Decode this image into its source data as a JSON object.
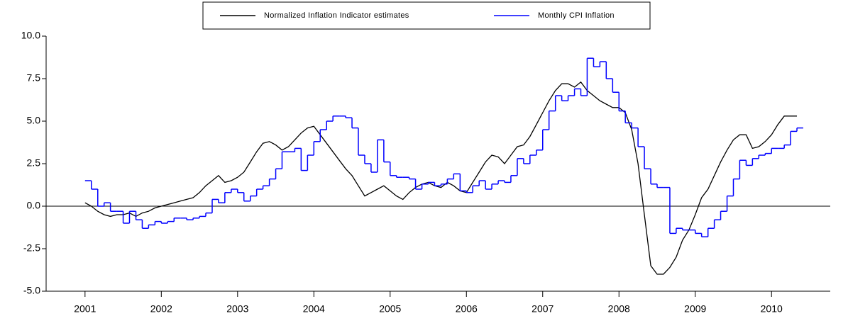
{
  "chart_data": {
    "type": "line",
    "x": [
      2001,
      2001.083,
      2001.167,
      2001.25,
      2001.333,
      2001.417,
      2001.5,
      2001.583,
      2001.667,
      2001.75,
      2001.833,
      2001.917,
      2002,
      2002.083,
      2002.167,
      2002.25,
      2002.333,
      2002.417,
      2002.5,
      2002.583,
      2002.667,
      2002.75,
      2002.833,
      2002.917,
      2003,
      2003.083,
      2003.167,
      2003.25,
      2003.333,
      2003.417,
      2003.5,
      2003.583,
      2003.667,
      2003.75,
      2003.833,
      2003.917,
      2004,
      2004.083,
      2004.167,
      2004.25,
      2004.333,
      2004.417,
      2004.5,
      2004.583,
      2004.667,
      2004.75,
      2004.833,
      2004.917,
      2005,
      2005.083,
      2005.167,
      2005.25,
      2005.333,
      2005.417,
      2005.5,
      2005.583,
      2005.667,
      2005.75,
      2005.833,
      2005.917,
      2006,
      2006.083,
      2006.167,
      2006.25,
      2006.333,
      2006.417,
      2006.5,
      2006.583,
      2006.667,
      2006.75,
      2006.833,
      2006.917,
      2007,
      2007.083,
      2007.167,
      2007.25,
      2007.333,
      2007.417,
      2007.5,
      2007.583,
      2007.667,
      2007.75,
      2007.833,
      2007.917,
      2008,
      2008.083,
      2008.167,
      2008.25,
      2008.333,
      2008.417,
      2008.5,
      2008.583,
      2008.667,
      2008.75,
      2008.833,
      2008.917,
      2009,
      2009.083,
      2009.167,
      2009.25,
      2009.333,
      2009.417,
      2009.5,
      2009.583,
      2009.667,
      2009.75,
      2009.833,
      2009.917,
      2010,
      2010.083,
      2010.167,
      2010.25,
      2010.333
    ],
    "series": [
      {
        "name": "Normalized Inflation Indicator estimates",
        "color": "#000000",
        "step": false,
        "values": [
          0.2,
          0.0,
          -0.3,
          -0.5,
          -0.6,
          -0.5,
          -0.5,
          -0.4,
          -0.6,
          -0.4,
          -0.3,
          -0.1,
          0.0,
          0.1,
          0.2,
          0.3,
          0.4,
          0.5,
          0.8,
          1.2,
          1.5,
          1.8,
          1.4,
          1.5,
          1.7,
          2.0,
          2.6,
          3.2,
          3.7,
          3.8,
          3.6,
          3.3,
          3.5,
          3.9,
          4.3,
          4.6,
          4.7,
          4.2,
          3.7,
          3.2,
          2.7,
          2.2,
          1.8,
          1.2,
          0.6,
          0.8,
          1.0,
          1.2,
          0.9,
          0.6,
          0.4,
          0.8,
          1.1,
          1.3,
          1.4,
          1.2,
          1.1,
          1.4,
          1.2,
          0.9,
          0.8,
          1.4,
          2.0,
          2.6,
          3.0,
          2.9,
          2.5,
          3.0,
          3.5,
          3.6,
          4.1,
          4.8,
          5.5,
          6.2,
          6.8,
          7.2,
          7.2,
          7.0,
          7.3,
          6.8,
          6.5,
          6.2,
          6.0,
          5.8,
          5.8,
          5.5,
          4.5,
          2.5,
          -0.5,
          -3.5,
          -4.0,
          -4.0,
          -3.6,
          -3.0,
          -2.0,
          -1.4,
          -0.5,
          0.5,
          1.0,
          1.8,
          2.6,
          3.3,
          3.9,
          4.2,
          4.2,
          3.4,
          3.5,
          3.8,
          4.2,
          4.8,
          5.3,
          5.3,
          5.3
        ]
      },
      {
        "name": "Monthly CPI Inflation",
        "color": "#0000ff",
        "step": true,
        "values": [
          1.5,
          1.0,
          0.0,
          0.2,
          -0.3,
          -0.3,
          -1.0,
          -0.3,
          -0.8,
          -1.3,
          -1.1,
          -0.9,
          -1.0,
          -0.9,
          -0.7,
          -0.7,
          -0.8,
          -0.7,
          -0.6,
          -0.4,
          0.4,
          0.2,
          0.8,
          1.0,
          0.8,
          0.3,
          0.6,
          1.0,
          1.2,
          1.6,
          2.2,
          3.2,
          3.2,
          3.4,
          2.1,
          3.0,
          3.8,
          4.5,
          5.0,
          5.3,
          5.3,
          5.2,
          4.6,
          3.0,
          2.5,
          2.0,
          3.9,
          2.6,
          1.8,
          1.7,
          1.7,
          1.6,
          1.0,
          1.3,
          1.4,
          1.2,
          1.3,
          1.6,
          1.9,
          0.9,
          0.8,
          1.2,
          1.5,
          1.0,
          1.3,
          1.5,
          1.4,
          1.8,
          2.8,
          2.5,
          3.0,
          3.3,
          4.5,
          5.6,
          6.5,
          6.2,
          6.5,
          6.9,
          6.5,
          8.7,
          8.2,
          8.5,
          7.5,
          6.7,
          5.6,
          4.9,
          4.6,
          3.5,
          2.2,
          1.3,
          1.1,
          1.1,
          -1.6,
          -1.3,
          -1.4,
          -1.4,
          -1.6,
          -1.8,
          -1.3,
          -0.8,
          -0.3,
          0.6,
          1.6,
          2.7,
          2.4,
          2.8,
          3.0,
          3.1,
          3.4,
          3.4,
          3.6,
          4.4,
          4.6
        ]
      }
    ],
    "xlim": [
      2000.49,
      2010.77
    ],
    "xticks": [
      2001,
      2002,
      2003,
      2004,
      2005,
      2006,
      2007,
      2008,
      2009,
      2010
    ],
    "ylim": [
      -5,
      10
    ],
    "yticks": [
      {
        "value": -5,
        "label": "-5.0"
      },
      {
        "value": -2.5,
        "label": "-2.5"
      },
      {
        "value": 0,
        "label": "0.0"
      },
      {
        "value": 2.5,
        "label": "2.5"
      },
      {
        "value": 5,
        "label": "5.0"
      },
      {
        "value": 7.5,
        "label": "7.5"
      },
      {
        "value": 10,
        "label": "10.0"
      }
    ],
    "zero_line": true,
    "legend": "top"
  }
}
